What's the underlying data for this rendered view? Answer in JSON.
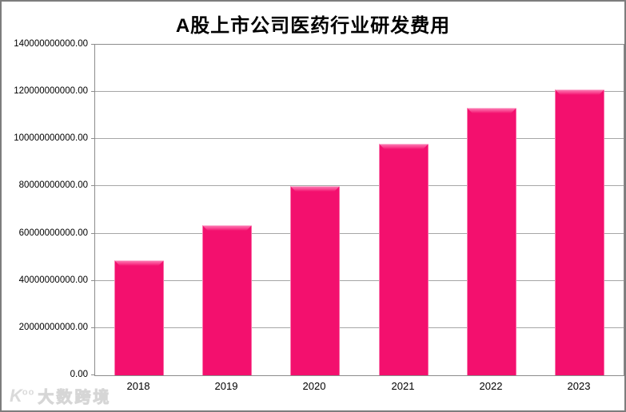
{
  "chart_data": {
    "type": "bar",
    "title": "A股上市公司医药行业研发费用",
    "categories": [
      "2018",
      "2019",
      "2020",
      "2021",
      "2022",
      "2023"
    ],
    "values": [
      48700000000,
      63600000000,
      80200000000,
      97900000000,
      113400000000,
      121000000000
    ],
    "ylim": [
      0,
      140000000000
    ],
    "ytick_step": 20000000000,
    "ytick_labels_top_to_bottom": [
      "140000000000.00",
      "120000000000.00",
      "100000000000.00",
      "80000000000.00",
      "60000000000.00",
      "40000000000.00",
      "20000000000.00",
      "0.00"
    ],
    "xlabel": "",
    "ylabel": "",
    "grid": true,
    "legend_position": "none",
    "bar_color": "#f3106e",
    "bar_highlight_color": "#fc86ba",
    "bar_shadow_color": "#8c003c",
    "gridline_color": "#a6a6a6",
    "plot_border_color": "#8c8c8c",
    "frame_border_color": "#7d7d7d",
    "title_color": "#000000"
  },
  "watermark": {
    "logo": "K",
    "logo_sup": "oo",
    "text": "大数跨境"
  }
}
